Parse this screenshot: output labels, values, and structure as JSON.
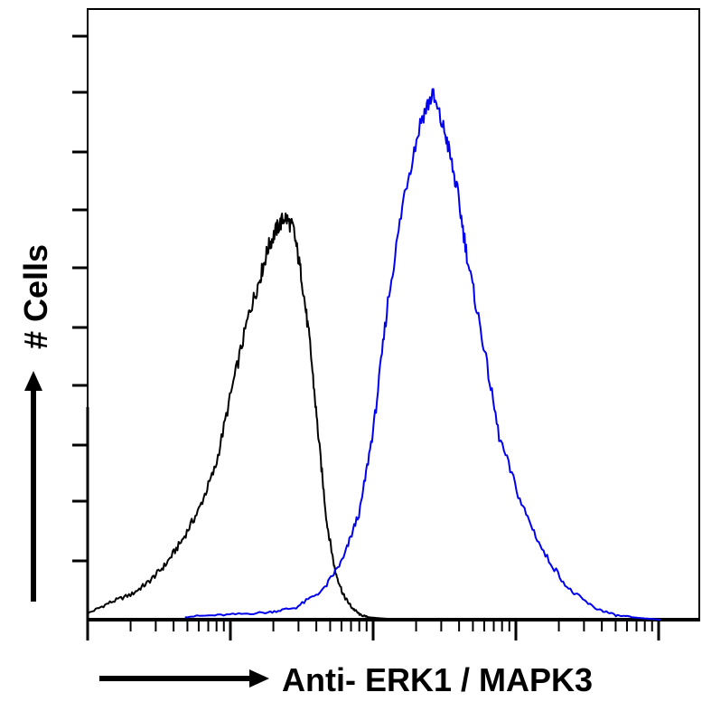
{
  "chart_data": {
    "type": "line",
    "title": "",
    "xlabel": "Anti- ERK1 / MAPK3",
    "ylabel": "# Cells",
    "x_scale": "log",
    "grid": false,
    "legend": "none",
    "series": [
      {
        "color": "#000000",
        "x": [
          0,
          0.8,
          1.6,
          2.2,
          2.8,
          3.4,
          4.0,
          4.6,
          5.2,
          5.8,
          6.2,
          6.5,
          6.8,
          7.1,
          7.4,
          7.7,
          8.0,
          8.3,
          8.6,
          8.9,
          9.2,
          9.5,
          9.8,
          10.1,
          10.6,
          11.2
        ],
        "y": [
          0.01,
          0.028,
          0.042,
          0.062,
          0.09,
          0.13,
          0.18,
          0.25,
          0.38,
          0.5,
          0.56,
          0.61,
          0.64,
          0.66,
          0.64,
          0.56,
          0.45,
          0.3,
          0.16,
          0.08,
          0.04,
          0.02,
          0.008,
          0.004,
          0.002,
          0
        ]
      },
      {
        "color": "#0000ee",
        "x": [
          3.5,
          5.0,
          6.5,
          7.5,
          8.5,
          9.2,
          9.8,
          10.3,
          10.8,
          11.4,
          12.0,
          12.4,
          12.9,
          13.3,
          13.7,
          14.2,
          14.8,
          15.6,
          16.4,
          17.3,
          18.2,
          19.0,
          19.8,
          20.6
        ],
        "y": [
          0.005,
          0.008,
          0.012,
          0.02,
          0.05,
          0.1,
          0.18,
          0.32,
          0.52,
          0.7,
          0.82,
          0.86,
          0.79,
          0.7,
          0.58,
          0.46,
          0.3,
          0.19,
          0.11,
          0.05,
          0.02,
          0.007,
          0.003,
          0
        ]
      }
    ]
  }
}
